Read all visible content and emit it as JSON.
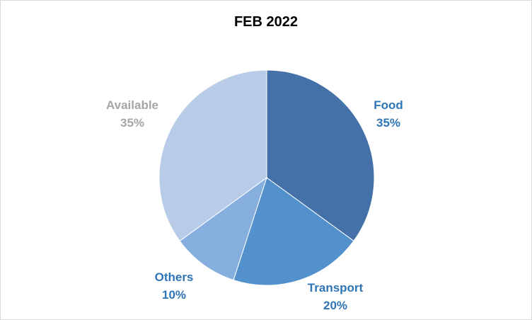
{
  "chart_data": {
    "type": "pie",
    "title": "FEB 2022",
    "slices": [
      {
        "label": "Food",
        "value": 35,
        "value_label": "35%",
        "color": "#4472A8",
        "label_color": "#2E75B6"
      },
      {
        "label": "Transport",
        "value": 20,
        "value_label": "20%",
        "color": "#5291CC",
        "label_color": "#2E75B6"
      },
      {
        "label": "Others",
        "value": 10,
        "value_label": "10%",
        "color": "#86AEDF",
        "label_color": "#2E75B6"
      },
      {
        "label": "Available",
        "value": 35,
        "value_label": "35%",
        "color": "#B8CCE7",
        "label_color": "#A6A6A6"
      }
    ],
    "legend": "none",
    "start_angle": "12 o'clock",
    "direction": "clockwise"
  }
}
